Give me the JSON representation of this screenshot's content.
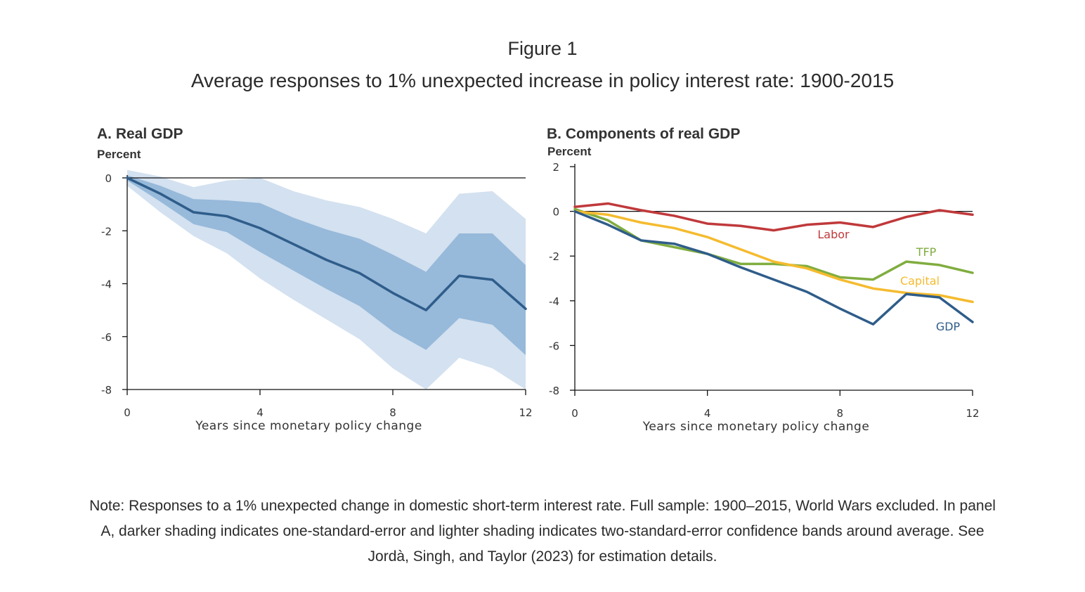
{
  "figure": {
    "label": "Figure 1",
    "title": "Average responses to 1% unexpected increase in policy interest rate: 1900-2015",
    "note": "Note: Responses to a 1% unexpected change in domestic short-term interest rate. Full sample: 1900–2015, World Wars excluded. In panel A, darker shading indicates one-standard-error and lighter shading indicates two-standard-error confidence bands around average. See Jordà, Singh, and Taylor (2023) for estimation details."
  },
  "panels": {
    "a": {
      "title": "A. Real GDP",
      "unit": "Percent"
    },
    "b": {
      "title": "B. Components of real GDP",
      "unit": "Percent"
    }
  },
  "chart_data": [
    {
      "type": "area",
      "title": "A. Real GDP",
      "ylabel": "Percent",
      "xlabel": "Years since monetary policy change",
      "xlim": [
        0,
        12
      ],
      "ylim": [
        -8,
        0
      ],
      "xticks": [
        "0",
        "4",
        "8",
        "12"
      ],
      "yticks": [
        "0",
        "-2",
        "-4",
        "-6",
        "-8"
      ],
      "x": [
        0,
        1,
        2,
        3,
        4,
        5,
        6,
        7,
        8,
        9,
        10,
        11,
        12
      ],
      "series": [
        {
          "name": "Real GDP",
          "color": "#2f5d8a",
          "values": [
            0,
            -0.6,
            -1.3,
            -1.45,
            -1.9,
            -2.5,
            -3.1,
            -3.6,
            -4.35,
            -5.0,
            -3.7,
            -3.85,
            -4.95
          ]
        },
        {
          "name": "One-standard-error upper",
          "values": [
            0.1,
            -0.3,
            -0.8,
            -0.85,
            -0.95,
            -1.5,
            -1.95,
            -2.3,
            -2.9,
            -3.55,
            -2.1,
            -2.1,
            -3.3
          ]
        },
        {
          "name": "One-standard-error lower",
          "values": [
            -0.1,
            -0.9,
            -1.75,
            -2.05,
            -2.8,
            -3.5,
            -4.2,
            -4.85,
            -5.8,
            -6.5,
            -5.3,
            -5.55,
            -6.7
          ]
        },
        {
          "name": "Two-standard-error upper",
          "values": [
            0.3,
            0.05,
            -0.35,
            -0.1,
            0.0,
            -0.5,
            -0.85,
            -1.1,
            -1.55,
            -2.1,
            -0.6,
            -0.5,
            -1.55
          ]
        },
        {
          "name": "Two-standard-error lower",
          "values": [
            -0.3,
            -1.3,
            -2.2,
            -2.85,
            -3.8,
            -4.6,
            -5.35,
            -6.1,
            -7.2,
            -8.0,
            -6.8,
            -7.2,
            -8.0
          ]
        }
      ],
      "band_colors": {
        "inner": "#97b9da",
        "outer": "#d3e1f0"
      }
    },
    {
      "type": "line",
      "title": "B. Components of real GDP",
      "ylabel": "Percent",
      "xlabel": "Years since monetary policy change",
      "xlim": [
        0,
        12
      ],
      "ylim": [
        -8,
        2
      ],
      "xticks": [
        "0",
        "4",
        "8",
        "12"
      ],
      "yticks": [
        "2",
        "0",
        "-2",
        "-4",
        "-6",
        "-8"
      ],
      "x": [
        0,
        1,
        2,
        3,
        4,
        5,
        6,
        7,
        8,
        9,
        10,
        11,
        12
      ],
      "series": [
        {
          "name": "Labor",
          "color": "#c0393b",
          "values": [
            0.2,
            0.35,
            0.05,
            -0.2,
            -0.55,
            -0.65,
            -0.85,
            -0.6,
            -0.5,
            -0.7,
            -0.25,
            0.05,
            -0.15
          ]
        },
        {
          "name": "TFP",
          "color": "#80ad3f",
          "values": [
            0.1,
            -0.4,
            -1.3,
            -1.6,
            -1.9,
            -2.35,
            -2.35,
            -2.45,
            -2.95,
            -3.05,
            -2.25,
            -2.4,
            -2.75
          ]
        },
        {
          "name": "Capital",
          "color": "#f5bb2f",
          "values": [
            0,
            -0.15,
            -0.5,
            -0.75,
            -1.15,
            -1.7,
            -2.25,
            -2.55,
            -3.05,
            -3.45,
            -3.65,
            -3.75,
            -4.05
          ]
        },
        {
          "name": "GDP",
          "color": "#2f5d8a",
          "values": [
            0,
            -0.6,
            -1.3,
            -1.45,
            -1.9,
            -2.5,
            -3.05,
            -3.6,
            -4.35,
            -5.05,
            -3.7,
            -3.85,
            -4.95
          ]
        }
      ],
      "series_labels": [
        "Labor",
        "TFP",
        "Capital",
        "GDP"
      ]
    }
  ]
}
